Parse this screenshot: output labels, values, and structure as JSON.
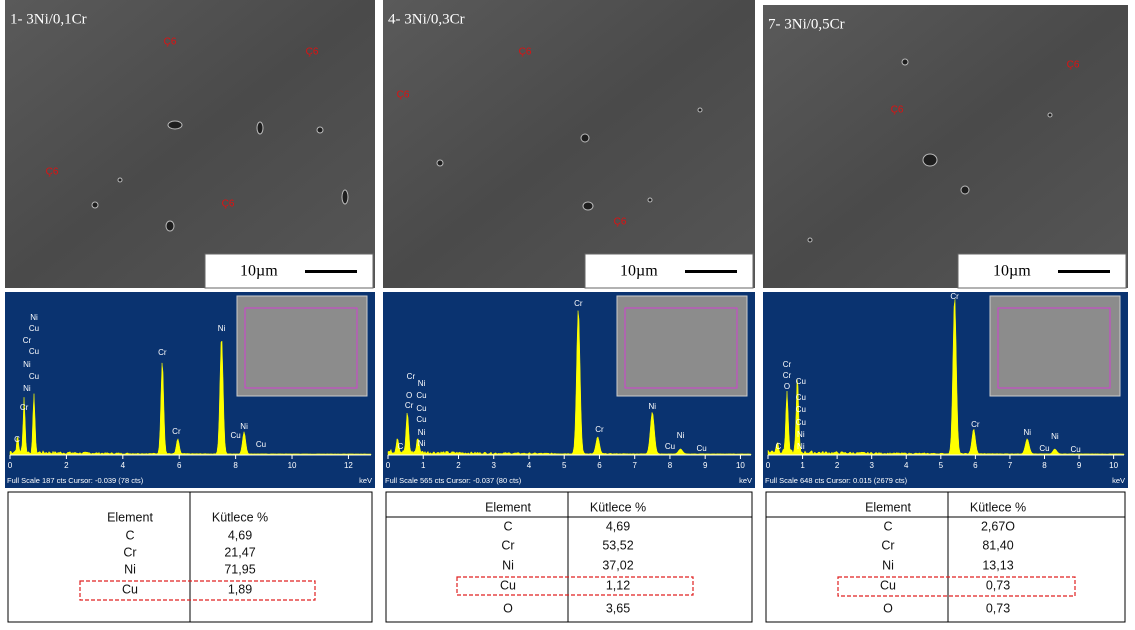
{
  "panels": [
    {
      "sem": {
        "label": "1- 3Ni/0,1Cr",
        "markers": [
          "Ç6",
          "Ç6",
          "Ç6",
          "Ç6"
        ],
        "scale": "10µm"
      },
      "eds": {
        "xlim": [
          0,
          12.8
        ],
        "xticks": [
          0,
          2,
          4,
          6,
          8,
          10,
          12
        ],
        "unit": "keV",
        "footer": "Full Scale 187 cts Cursor: -0.039 (78 cts)",
        "peak_labels": [
          "Ni",
          "Cu",
          "Cr",
          "Cu",
          "Ni",
          "Cu",
          "Ni",
          "Cr",
          "C",
          "Cr",
          "Cr",
          "Ni",
          "Ni",
          "Cu",
          "Cu"
        ]
      },
      "table": {
        "header": [
          "Element",
          "Kütlece %"
        ],
        "rows": [
          [
            "C",
            "4,69"
          ],
          [
            "Cr",
            "21,47"
          ],
          [
            "Ni",
            "71,95"
          ],
          [
            "Cu",
            "1,89"
          ]
        ],
        "highlight_row": 3
      }
    },
    {
      "sem": {
        "label": "4- 3Ni/0,3Cr",
        "markers": [
          "Ç6",
          "Ç6",
          "Ç6"
        ],
        "scale": "10µm"
      },
      "eds": {
        "xlim": [
          0,
          10.3
        ],
        "xticks": [
          0,
          1,
          2,
          3,
          4,
          5,
          6,
          7,
          8,
          9,
          10
        ],
        "unit": "keV",
        "footer": "Full Scale 565 cts Cursor: -0.037 (80 cts)",
        "peak_labels": [
          "Cr",
          "Ni",
          "O",
          "Cu",
          "Cr",
          "Cu",
          "Cu",
          "Ni",
          "Ni",
          "C",
          "Cr",
          "Cr",
          "Ni",
          "Ni",
          "Cu",
          "Cu"
        ]
      },
      "table": {
        "header": [
          "Element",
          "Kütlece %"
        ],
        "rows": [
          [
            "C",
            "4,69"
          ],
          [
            "Cr",
            "53,52"
          ],
          [
            "Ni",
            "37,02"
          ],
          [
            "Cu",
            "1,12"
          ],
          [
            "O",
            "3,65"
          ]
        ],
        "highlight_row": 3
      }
    },
    {
      "sem": {
        "label": "7- 3Ni/0,5Cr",
        "markers": [
          "Ç6",
          "Ç6"
        ],
        "scale": "10µm"
      },
      "eds": {
        "xlim": [
          0,
          10.3
        ],
        "xticks": [
          0,
          1,
          2,
          3,
          4,
          5,
          6,
          7,
          8,
          9,
          10
        ],
        "unit": "keV",
        "footer": "Full Scale 648 cts Cursor: 0.015 (2679 cts)",
        "peak_labels": [
          "Cr",
          "Cr",
          "O",
          "Cu",
          "Cu",
          "Cu",
          "Cu",
          "Ni",
          "Ni",
          "C",
          "Cr",
          "Cr",
          "Ni",
          "Ni",
          "Cu",
          "Cu"
        ]
      },
      "table": {
        "header": [
          "Element",
          "Kütlece %"
        ],
        "rows": [
          [
            "C",
            "2,67O"
          ],
          [
            "Cr",
            "81,40"
          ],
          [
            "Ni",
            "13,13"
          ],
          [
            "Cu",
            "0,73"
          ],
          [
            "O",
            "0,73"
          ]
        ],
        "highlight_row": 3
      }
    }
  ]
}
